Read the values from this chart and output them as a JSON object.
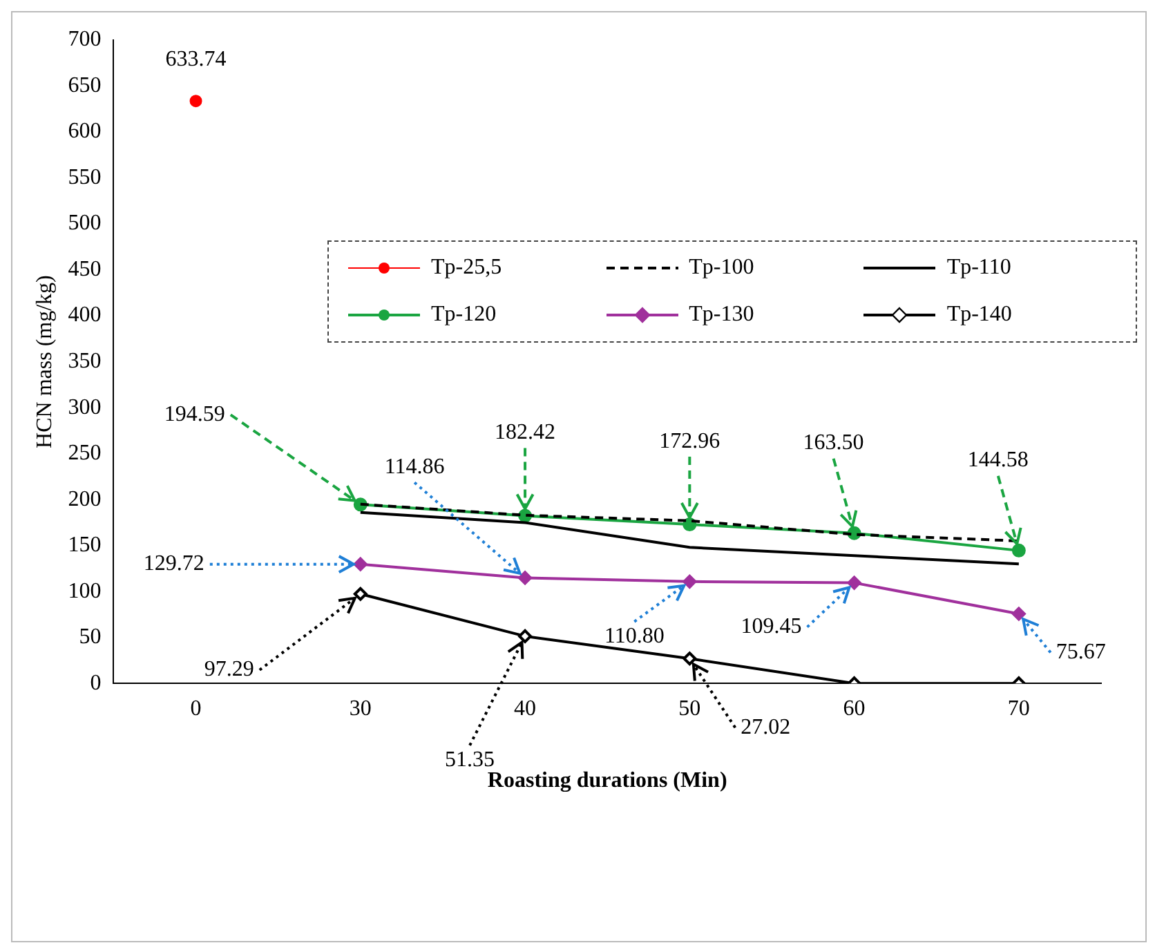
{
  "chart_data": {
    "type": "line",
    "xlabel": "Roasting durations (Min)",
    "ylabel": "HCN mass (mg/kg)",
    "categories": [
      "0",
      "30",
      "40",
      "50",
      "60",
      "70"
    ],
    "ylim": [
      0,
      700
    ],
    "yticks": [
      0,
      50,
      100,
      150,
      200,
      250,
      300,
      350,
      400,
      450,
      500,
      550,
      600,
      650,
      700
    ],
    "grid": false,
    "legend": "top",
    "series": [
      {
        "name": "Tp-25,5",
        "type": "scatter",
        "color": "#ff0000",
        "marker": "circle",
        "values": [
          633.74,
          null,
          null,
          null,
          null,
          null
        ],
        "value_labels": [
          "633.74",
          null,
          null,
          null,
          null,
          null
        ]
      },
      {
        "name": "Tp-100",
        "color": "#000000",
        "line_style": "dashed",
        "marker": "none",
        "values": [
          null,
          195,
          183,
          177,
          162,
          155
        ]
      },
      {
        "name": "Tp-110",
        "color": "#000000",
        "line_style": "solid",
        "marker": "none",
        "values": [
          null,
          186,
          175,
          148,
          139,
          130
        ]
      },
      {
        "name": "Tp-120",
        "color": "#1aa541",
        "line_style": "solid",
        "marker": "circle",
        "values": [
          null,
          194.59,
          182.42,
          172.96,
          163.5,
          144.58
        ],
        "value_labels": [
          null,
          "194.59",
          "182.42",
          "172.96",
          "163.50",
          "144.58"
        ]
      },
      {
        "name": "Tp-130",
        "color": "#a0309c",
        "line_style": "solid",
        "marker": "diamond",
        "values": [
          null,
          129.72,
          114.86,
          110.8,
          109.45,
          75.67
        ],
        "value_labels": [
          null,
          "129.72",
          "114.86",
          "110.80",
          "109.45",
          "75.67"
        ]
      },
      {
        "name": "Tp-140",
        "color": "#000000",
        "line_style": "solid",
        "marker": "diamond",
        "values": [
          null,
          97.29,
          51.35,
          27.02,
          0,
          0
        ],
        "value_labels": [
          null,
          "97.29",
          "51.35",
          "27.02",
          null,
          null
        ]
      }
    ]
  }
}
